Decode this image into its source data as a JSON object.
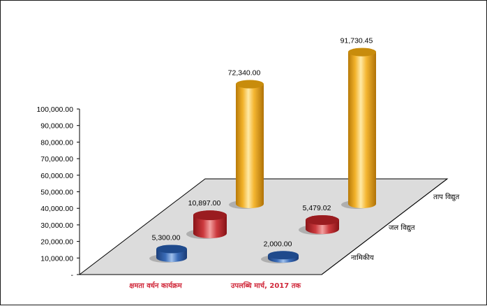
{
  "chart_data": {
    "type": "bar",
    "variant": "3d-cylinder",
    "title": "",
    "xlabel": "",
    "ylabel": "",
    "categories": [
      "क्षमता वर्धन कार्यक्रम",
      "उपलब्धि मार्च, 2017 तक"
    ],
    "series": [
      {
        "name": "नामिकीय",
        "values": [
          5300.0,
          2000.0
        ],
        "labels": [
          "5,300.00",
          "2,000.00"
        ],
        "color": "#2e5ea8"
      },
      {
        "name": "जल विद्युत",
        "values": [
          10897.0,
          5479.02
        ],
        "labels": [
          "10,897.00",
          "5,479.02"
        ],
        "color": "#c0282e"
      },
      {
        "name": "ताप विद्युत",
        "values": [
          72340.0,
          91730.45
        ],
        "labels": [
          "72,340.00",
          "91,730.45"
        ],
        "color": "#f0a818"
      }
    ],
    "ylim": [
      0,
      100000
    ],
    "y_ticks": [
      "-",
      "10,000.00",
      "20,000.00",
      "30,000.00",
      "40,000.00",
      "50,000.00",
      "60,000.00",
      "70,000.00",
      "80,000.00",
      "90,000.00",
      "100,000.00"
    ],
    "grid": false,
    "floor_color": "#dcdcdc"
  }
}
